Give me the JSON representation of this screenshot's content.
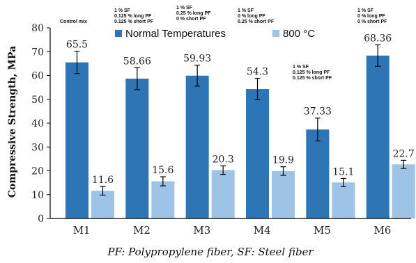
{
  "colors": {
    "normal": "#2e75b6",
    "heated": "#9dc3e6",
    "axis": "#000000"
  },
  "chart_data": {
    "type": "bar",
    "categories": [
      "M1",
      "M2",
      "M3",
      "M4",
      "M5",
      "M6"
    ],
    "series": [
      {
        "name": "Normal Temperatures",
        "values": [
          65.5,
          58.66,
          59.93,
          54.3,
          37.33,
          68.36
        ],
        "labels": [
          "65.5",
          "58.66",
          "59.93",
          "54.3",
          "37.33",
          "68.36"
        ],
        "err": [
          4.7,
          4.6,
          4.4,
          4.5,
          4.8,
          4.5
        ]
      },
      {
        "name": "800 °C",
        "values": [
          11.6,
          15.6,
          20.3,
          19.9,
          15.1,
          22.7
        ],
        "labels": [
          "11.6",
          "15.6",
          "20.3",
          "19.9",
          "15.1",
          "22.7"
        ],
        "err": [
          1.8,
          1.9,
          1.8,
          1.8,
          1.7,
          1.7
        ]
      }
    ],
    "ylabel": "Compressive Strength, MPa",
    "ylim": [
      0,
      80
    ],
    "yticks": [
      "0",
      "10",
      "20",
      "30",
      "40",
      "50",
      "60",
      "70",
      "80"
    ],
    "legend": "top",
    "grid": false
  },
  "annotations": [
    {
      "key": "m1",
      "lines": [
        "Control mix"
      ]
    },
    {
      "key": "m2",
      "lines": [
        "1 % SF",
        "0.125 % long PF",
        "0.125 % short PF"
      ]
    },
    {
      "key": "m3",
      "lines": [
        "1 % SF",
        "0.25 % long PF",
        "0 % short PF"
      ]
    },
    {
      "key": "m4",
      "lines": [
        "1 % SF",
        "0 % long PF",
        "0.25 % short PF"
      ]
    },
    {
      "key": "m5",
      "lines": [
        "1 % SF",
        "0.125 % long PF",
        "0.125 % short PF"
      ]
    },
    {
      "key": "m6",
      "lines": [
        "1 % SF",
        "0 % long PF",
        "0 % short PF"
      ]
    }
  ],
  "caption": "PF: Polypropylene fiber, SF: Steel fiber"
}
